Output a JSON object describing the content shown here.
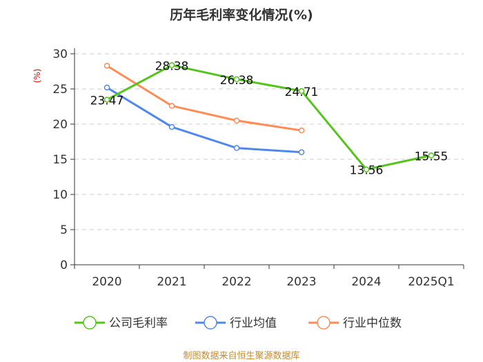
{
  "chart_data": {
    "type": "line",
    "title": "历年毛利率变化情况(%)",
    "ylabel": "(%)",
    "xlabel": "",
    "ylim": [
      0,
      30
    ],
    "yticks": [
      0,
      5,
      10,
      15,
      20,
      25,
      30
    ],
    "grid": true,
    "legend_position": "bottom",
    "categories": [
      "2020",
      "2021",
      "2022",
      "2023",
      "2024",
      "2025Q1"
    ],
    "series": [
      {
        "name": "公司毛利率",
        "color": "#52c41a",
        "values": [
          23.47,
          28.38,
          26.38,
          24.71,
          13.56,
          15.55
        ],
        "labels": [
          "23.47",
          "28.38",
          "26.38",
          "24.71",
          "13.56",
          "15.55"
        ]
      },
      {
        "name": "行业均值",
        "color": "#5087ec",
        "values": [
          25.2,
          19.6,
          16.6,
          16.0,
          null,
          null
        ]
      },
      {
        "name": "行业中位数",
        "color": "#ff8c55",
        "values": [
          28.3,
          22.6,
          20.5,
          19.1,
          null,
          null
        ]
      }
    ],
    "source": "制图数据来自恒生聚源数据库"
  }
}
